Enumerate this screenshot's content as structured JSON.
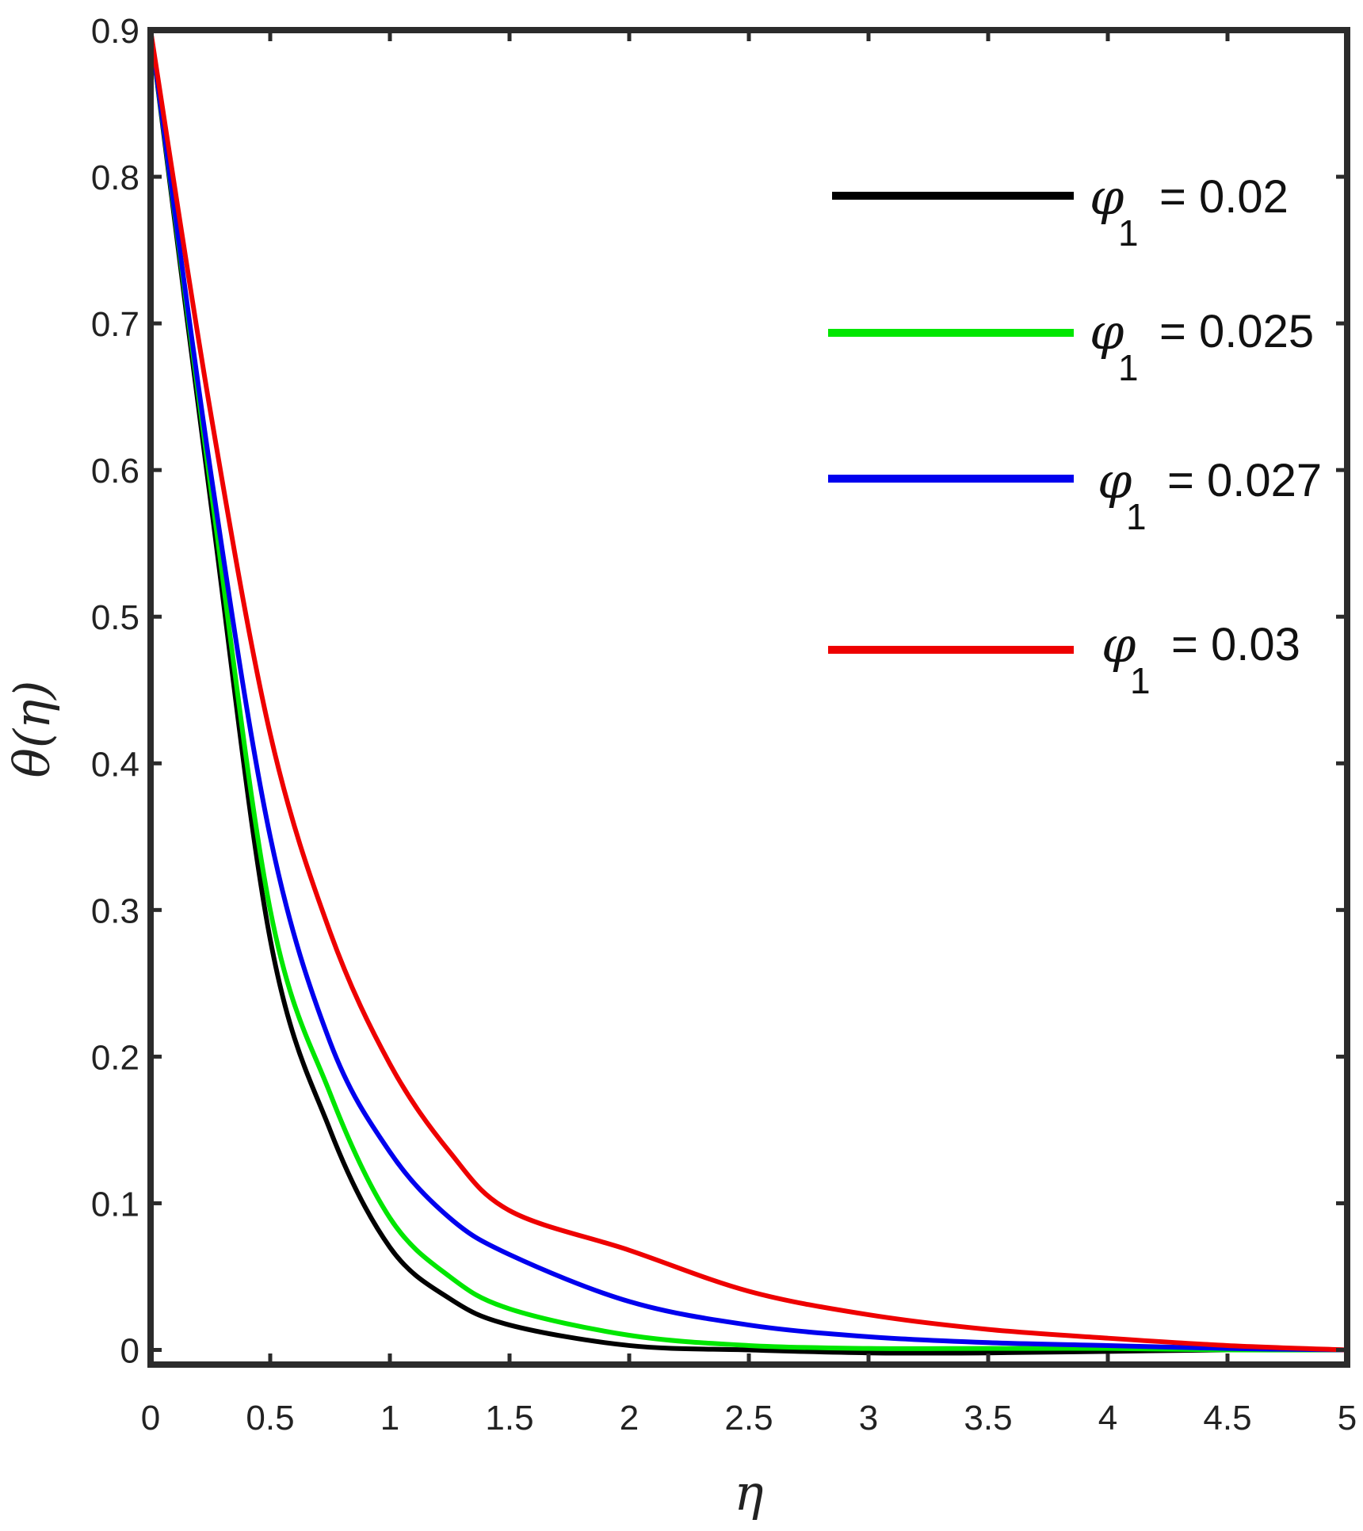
{
  "chart_data": {
    "type": "line",
    "xlabel": "η",
    "ylabel": "θ(η)",
    "xlim": [
      0,
      5
    ],
    "ylim": [
      -0.01,
      0.9
    ],
    "xticks": [
      0,
      0.5,
      1,
      1.5,
      2,
      2.5,
      3,
      3.5,
      4,
      4.5,
      5
    ],
    "xtick_labels": [
      "0",
      "0.5",
      "1",
      "1.5",
      "2",
      "2.5",
      "3",
      "3.5",
      "4",
      "4.5",
      "5"
    ],
    "yticks": [
      0,
      0.1,
      0.2,
      0.3,
      0.4,
      0.5,
      0.6,
      0.7,
      0.8,
      0.9
    ],
    "ytick_labels": [
      "0",
      "0.1",
      "0.2",
      "0.3",
      "0.4",
      "0.5",
      "0.6",
      "0.7",
      "0.8",
      "0.9"
    ],
    "grid": false,
    "legend_position": "top-right",
    "x": [
      0,
      0.25,
      0.5,
      0.75,
      1,
      1.25,
      1.5,
      2,
      2.5,
      3,
      3.5,
      4,
      4.5,
      5
    ],
    "series": [
      {
        "symbol": "φ",
        "subscript": "1",
        "value_text": "= 0.02",
        "color": "#000000",
        "values": [
          0.9,
          0.58,
          0.28,
          0.15,
          0.07,
          0.035,
          0.017,
          0.003,
          0.0,
          -0.002,
          -0.002,
          -0.001,
          0.0,
          0.0
        ]
      },
      {
        "symbol": "φ",
        "subscript": "1",
        "value_text": "= 0.025",
        "color": "#00e600",
        "values": [
          0.9,
          0.59,
          0.3,
          0.175,
          0.09,
          0.05,
          0.028,
          0.01,
          0.003,
          0.001,
          0.001,
          0.001,
          0.0,
          0.0
        ]
      },
      {
        "symbol": "φ",
        "subscript": "1",
        "value_text": "= 0.027",
        "color": "#0000ee",
        "values": [
          0.9,
          0.6,
          0.35,
          0.21,
          0.135,
          0.09,
          0.065,
          0.033,
          0.017,
          0.009,
          0.005,
          0.003,
          0.001,
          0.0
        ]
      },
      {
        "symbol": "φ",
        "subscript": "1",
        "value_text": "= 0.03",
        "color": "#ee0000",
        "values": [
          0.9,
          0.64,
          0.42,
          0.285,
          0.195,
          0.135,
          0.095,
          0.068,
          0.04,
          0.024,
          0.014,
          0.008,
          0.003,
          0.0
        ]
      }
    ]
  }
}
